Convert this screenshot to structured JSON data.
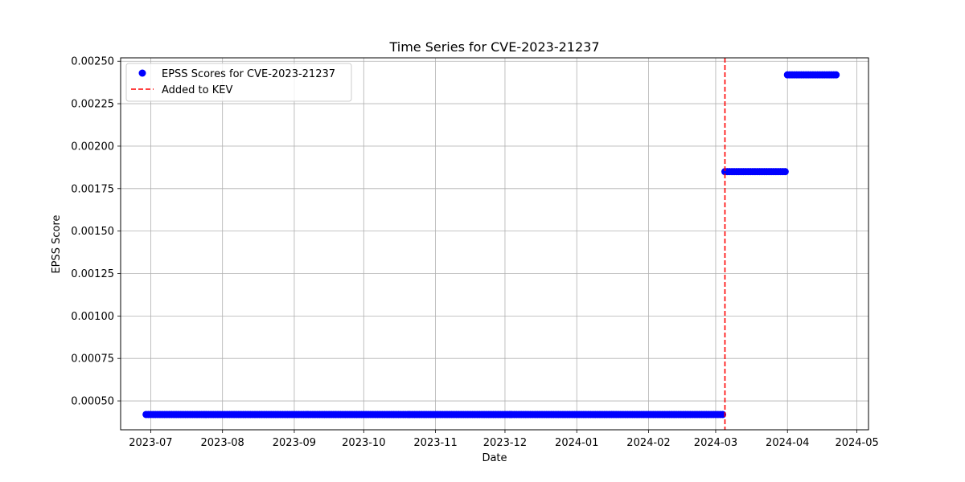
{
  "chart_data": {
    "type": "scatter",
    "title": "Time Series for CVE-2023-21237",
    "xlabel": "Date",
    "ylabel": "EPSS Score",
    "x_axis_type": "date",
    "xlim": [
      "2023-06-18",
      "2024-05-06"
    ],
    "ylim": [
      0.00033,
      0.00252
    ],
    "grid": true,
    "legend_position": "upper-left",
    "x_ticks": [
      "2023-07",
      "2023-08",
      "2023-09",
      "2023-10",
      "2023-11",
      "2023-12",
      "2024-01",
      "2024-02",
      "2024-03",
      "2024-04",
      "2024-05"
    ],
    "y_ticks": [
      "0.00050",
      "0.00075",
      "0.00100",
      "0.00125",
      "0.00150",
      "0.00175",
      "0.00200",
      "0.00225",
      "0.00250"
    ],
    "series": [
      {
        "name": "EPSS Scores for CVE-2023-21237",
        "color": "#0000ff",
        "marker": "circle",
        "segments": [
          {
            "start": "2023-06-29",
            "end": "2024-03-04",
            "value": 0.00042
          },
          {
            "start": "2024-03-05",
            "end": "2024-03-31",
            "value": 0.00185
          },
          {
            "start": "2024-04-01",
            "end": "2024-04-22",
            "value": 0.00242
          }
        ]
      }
    ],
    "annotations": [
      {
        "type": "vline",
        "date": "2024-03-05",
        "color": "#ff0000",
        "style": "dashed",
        "label": "Added to KEV"
      }
    ]
  }
}
